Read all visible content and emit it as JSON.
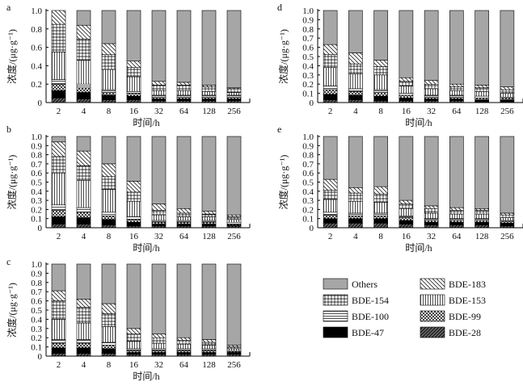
{
  "chart_data": {
    "type": "bar",
    "stacked": true,
    "series_order": [
      "BDE-28",
      "BDE-47",
      "BDE-99",
      "BDE-100",
      "BDE-153",
      "BDE-154",
      "BDE-183",
      "Others"
    ],
    "colors": {
      "Others": "#a6a6a6",
      "BDE-47": "#000000",
      "bar_edge": "#000000"
    },
    "legend": {
      "placement": "bottom-right",
      "items": [
        {
          "key": "Others",
          "label": "Others"
        },
        {
          "key": "BDE-183",
          "label": "BDE-183"
        },
        {
          "key": "BDE-154",
          "label": "BDE-154"
        },
        {
          "key": "BDE-153",
          "label": "BDE-153"
        },
        {
          "key": "BDE-100",
          "label": "BDE-100"
        },
        {
          "key": "BDE-99",
          "label": "BDE-99"
        },
        {
          "key": "BDE-47",
          "label": "BDE-47"
        },
        {
          "key": "BDE-28",
          "label": "BDE-28"
        }
      ]
    },
    "panels": [
      {
        "id": "a",
        "label": "a",
        "categories": [
          "2",
          "4",
          "8",
          "16",
          "32",
          "64",
          "128",
          "256"
        ],
        "xlabel": "时间/h",
        "ylabel": "浓度/(μg·g⁻¹)",
        "ylim": [
          0,
          1.0
        ],
        "yticks": [
          "0",
          "0.2",
          "0.4",
          "0.6",
          "0.8",
          "1.0"
        ],
        "series": [
          {
            "name": "BDE-28",
            "values": [
              0.05,
              0.04,
              0.03,
              0.03,
              0.02,
              0.02,
              0.02,
              0.02
            ]
          },
          {
            "name": "BDE-47",
            "values": [
              0.08,
              0.07,
              0.05,
              0.04,
              0.02,
              0.02,
              0.02,
              0.02
            ]
          },
          {
            "name": "BDE-99",
            "values": [
              0.07,
              0.05,
              0.03,
              0.03,
              0.02,
              0.02,
              0.02,
              0.02
            ]
          },
          {
            "name": "BDE-100",
            "values": [
              0.05,
              0.04,
              0.03,
              0.02,
              0.02,
              0.02,
              0.02,
              0.02
            ]
          },
          {
            "name": "BDE-153",
            "values": [
              0.3,
              0.26,
              0.22,
              0.16,
              0.05,
              0.05,
              0.04,
              0.03
            ]
          },
          {
            "name": "BDE-154",
            "values": [
              0.3,
              0.23,
              0.16,
              0.1,
              0.06,
              0.06,
              0.05,
              0.04
            ]
          },
          {
            "name": "BDE-183",
            "values": [
              0.15,
              0.15,
              0.12,
              0.07,
              0.04,
              0.03,
              0.02,
              0.01
            ]
          },
          {
            "name": "Others",
            "values": [
              0.0,
              0.16,
              0.36,
              0.55,
              0.77,
              0.78,
              0.81,
              0.84
            ]
          }
        ]
      },
      {
        "id": "b",
        "label": "b",
        "categories": [
          "2",
          "4",
          "8",
          "16",
          "32",
          "64",
          "128",
          "256"
        ],
        "xlabel": "时间/h",
        "ylabel": "浓度/(μg·g⁻¹)",
        "ylim": [
          0,
          1.0
        ],
        "yticks": [
          "0",
          "0.1",
          "0.2",
          "0.3",
          "0.4",
          "0.5",
          "0.6",
          "0.7",
          "0.8",
          "0.9",
          "1.0"
        ],
        "series": [
          {
            "name": "BDE-28",
            "values": [
              0.04,
              0.04,
              0.03,
              0.02,
              0.02,
              0.02,
              0.02,
              0.02
            ]
          },
          {
            "name": "BDE-47",
            "values": [
              0.08,
              0.07,
              0.06,
              0.04,
              0.02,
              0.02,
              0.02,
              0.01
            ]
          },
          {
            "name": "BDE-99",
            "values": [
              0.07,
              0.06,
              0.04,
              0.03,
              0.02,
              0.02,
              0.02,
              0.01
            ]
          },
          {
            "name": "BDE-100",
            "values": [
              0.06,
              0.05,
              0.04,
              0.03,
              0.02,
              0.02,
              0.02,
              0.02
            ]
          },
          {
            "name": "BDE-153",
            "values": [
              0.35,
              0.3,
              0.25,
              0.17,
              0.06,
              0.04,
              0.04,
              0.03
            ]
          },
          {
            "name": "BDE-154",
            "values": [
              0.18,
              0.16,
              0.14,
              0.1,
              0.05,
              0.04,
              0.03,
              0.03
            ]
          },
          {
            "name": "BDE-183",
            "values": [
              0.16,
              0.16,
              0.14,
              0.12,
              0.07,
              0.05,
              0.03,
              0.02
            ]
          },
          {
            "name": "Others",
            "values": [
              0.06,
              0.16,
              0.3,
              0.49,
              0.74,
              0.79,
              0.82,
              0.86
            ]
          }
        ]
      },
      {
        "id": "c",
        "label": "c",
        "categories": [
          "2",
          "4",
          "8",
          "16",
          "32",
          "64",
          "128",
          "256"
        ],
        "xlabel": "时间/h",
        "ylabel": "浓度/(μg·g⁻¹)",
        "ylim": [
          0,
          1.0
        ],
        "yticks": [
          "0",
          "0.1",
          "0.2",
          "0.3",
          "0.4",
          "0.5",
          "0.6",
          "0.7",
          "0.8",
          "0.9",
          "1.0"
        ],
        "series": [
          {
            "name": "BDE-28",
            "values": [
              0.03,
              0.03,
              0.03,
              0.02,
              0.02,
              0.02,
              0.02,
              0.02
            ]
          },
          {
            "name": "BDE-47",
            "values": [
              0.06,
              0.06,
              0.05,
              0.02,
              0.02,
              0.02,
              0.02,
              0.02
            ]
          },
          {
            "name": "BDE-99",
            "values": [
              0.05,
              0.05,
              0.04,
              0.02,
              0.02,
              0.02,
              0.02,
              0.01
            ]
          },
          {
            "name": "BDE-100",
            "values": [
              0.04,
              0.04,
              0.03,
              0.02,
              0.02,
              0.02,
              0.02,
              0.01
            ]
          },
          {
            "name": "BDE-153",
            "values": [
              0.22,
              0.18,
              0.17,
              0.08,
              0.06,
              0.05,
              0.04,
              0.02
            ]
          },
          {
            "name": "BDE-154",
            "values": [
              0.2,
              0.17,
              0.14,
              0.08,
              0.06,
              0.04,
              0.03,
              0.02
            ]
          },
          {
            "name": "BDE-183",
            "values": [
              0.11,
              0.09,
              0.11,
              0.06,
              0.04,
              0.03,
              0.03,
              0.02
            ]
          },
          {
            "name": "Others",
            "values": [
              0.29,
              0.38,
              0.43,
              0.7,
              0.76,
              0.8,
              0.82,
              0.88
            ]
          }
        ]
      },
      {
        "id": "d",
        "label": "d",
        "categories": [
          "2",
          "4",
          "8",
          "16",
          "32",
          "64",
          "128",
          "256"
        ],
        "xlabel": "时间/h",
        "ylabel": "浓度/(μg·g⁻¹)",
        "ylim": [
          0,
          1.0
        ],
        "yticks": [
          "0",
          "0.1",
          "0.2",
          "0.3",
          "0.4",
          "0.5",
          "0.6",
          "0.7",
          "0.8",
          "0.9",
          "1.0"
        ],
        "series": [
          {
            "name": "BDE-28",
            "values": [
              0.03,
              0.03,
              0.02,
              0.02,
              0.02,
              0.02,
              0.01,
              0.01
            ]
          },
          {
            "name": "BDE-47",
            "values": [
              0.06,
              0.05,
              0.05,
              0.03,
              0.02,
              0.02,
              0.02,
              0.02
            ]
          },
          {
            "name": "BDE-99",
            "values": [
              0.05,
              0.04,
              0.04,
              0.03,
              0.02,
              0.02,
              0.02,
              0.02
            ]
          },
          {
            "name": "BDE-100",
            "values": [
              0.04,
              0.03,
              0.03,
              0.02,
              0.02,
              0.02,
              0.02,
              0.01
            ]
          },
          {
            "name": "BDE-153",
            "values": [
              0.2,
              0.16,
              0.16,
              0.08,
              0.07,
              0.05,
              0.05,
              0.04
            ]
          },
          {
            "name": "BDE-154",
            "values": [
              0.14,
              0.11,
              0.09,
              0.05,
              0.05,
              0.04,
              0.04,
              0.04
            ]
          },
          {
            "name": "BDE-183",
            "values": [
              0.11,
              0.12,
              0.07,
              0.04,
              0.04,
              0.03,
              0.03,
              0.03
            ]
          },
          {
            "name": "Others",
            "values": [
              0.37,
              0.46,
              0.54,
              0.73,
              0.76,
              0.8,
              0.81,
              0.83
            ]
          }
        ]
      },
      {
        "id": "e",
        "label": "e",
        "categories": [
          "2",
          "4",
          "8",
          "16",
          "32",
          "64",
          "128",
          "256"
        ],
        "xlabel": "时间/h",
        "ylabel": "浓度/(μg·g⁻¹)",
        "ylim": [
          0,
          1.0
        ],
        "yticks": [
          "0",
          "0.1",
          "0.2",
          "0.3",
          "0.4",
          "0.5",
          "0.6",
          "0.7",
          "0.8",
          "0.9",
          "1.0"
        ],
        "series": [
          {
            "name": "BDE-28",
            "values": [
              0.05,
              0.05,
              0.05,
              0.04,
              0.03,
              0.03,
              0.03,
              0.02
            ]
          },
          {
            "name": "BDE-47",
            "values": [
              0.05,
              0.05,
              0.05,
              0.04,
              0.03,
              0.03,
              0.03,
              0.03
            ]
          },
          {
            "name": "BDE-99",
            "values": [
              0.04,
              0.03,
              0.03,
              0.03,
              0.02,
              0.02,
              0.02,
              0.02
            ]
          },
          {
            "name": "BDE-100",
            "values": [
              0.03,
              0.03,
              0.03,
              0.02,
              0.02,
              0.02,
              0.02,
              0.01
            ]
          },
          {
            "name": "BDE-153",
            "values": [
              0.14,
              0.13,
              0.12,
              0.08,
              0.06,
              0.05,
              0.05,
              0.03
            ]
          },
          {
            "name": "BDE-154",
            "values": [
              0.1,
              0.09,
              0.09,
              0.05,
              0.05,
              0.04,
              0.04,
              0.03
            ]
          },
          {
            "name": "BDE-183",
            "values": [
              0.12,
              0.06,
              0.08,
              0.04,
              0.03,
              0.03,
              0.02,
              0.02
            ]
          },
          {
            "name": "Others",
            "values": [
              0.47,
              0.56,
              0.55,
              0.7,
              0.76,
              0.78,
              0.79,
              0.84
            ]
          }
        ]
      }
    ]
  }
}
